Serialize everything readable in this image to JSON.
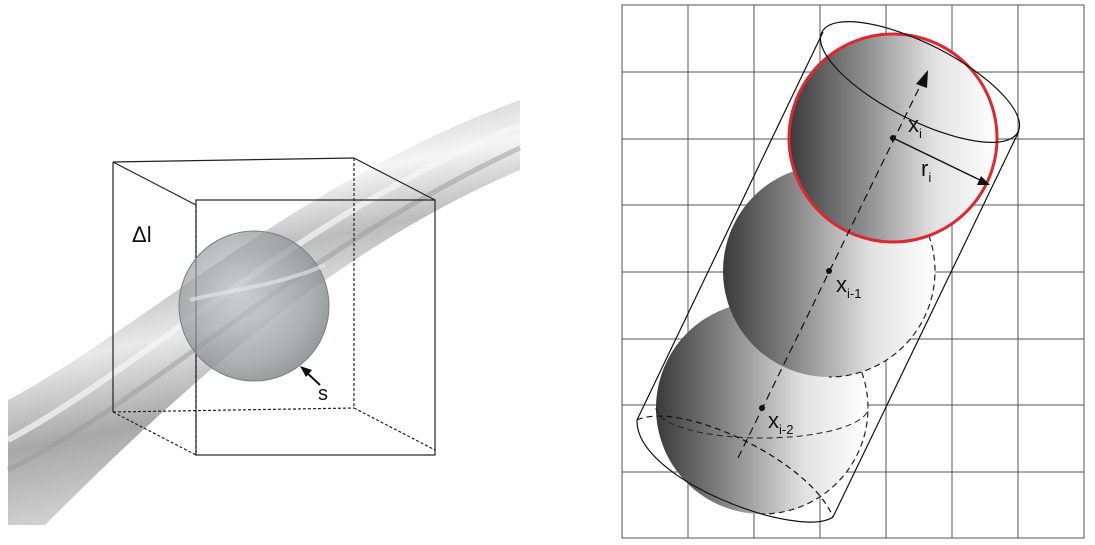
{
  "left_panel": {
    "box_label": "Δl",
    "sphere_label": "s"
  },
  "right_panel": {
    "labels": {
      "x_i": "x",
      "x_i_sub": "i",
      "r_i": "r",
      "r_i_sub": "i",
      "x_i1": "x",
      "x_i1_sub": "i-1",
      "x_i2": "x",
      "x_i2_sub": "i-2"
    },
    "colors": {
      "highlight": "#e0262e",
      "grid": "#555555"
    }
  }
}
